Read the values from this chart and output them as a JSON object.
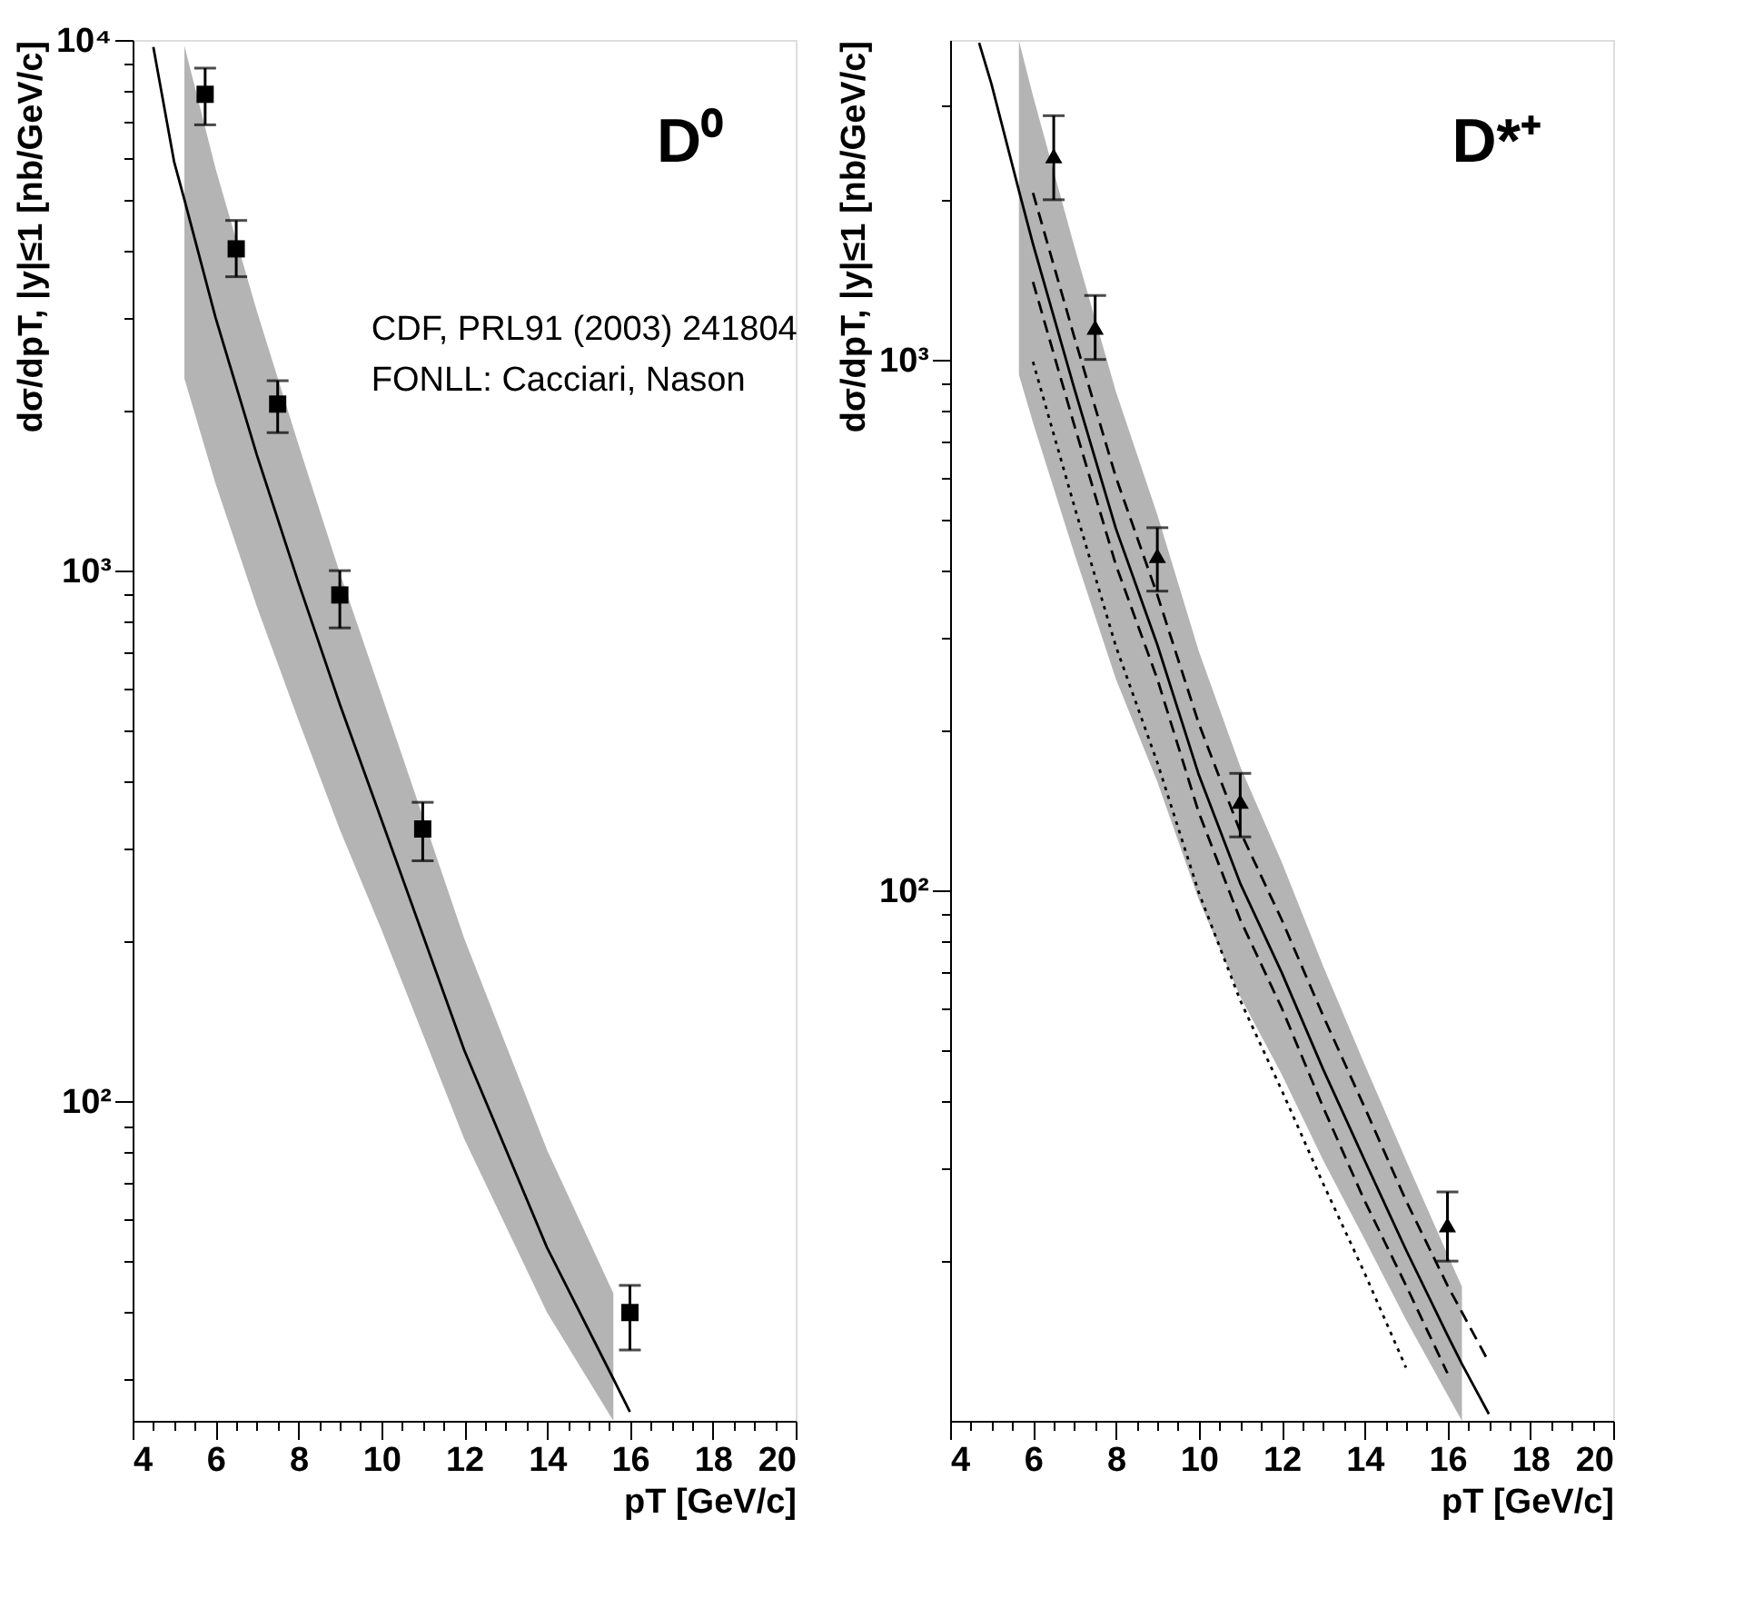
{
  "chart_data": [
    {
      "type": "line",
      "title": "D⁰",
      "xlabel": "pT  [GeV/c]",
      "ylabel": "dσ/dpT, |y|≤1  [nb/GeV/c]",
      "log": "y",
      "grid": false,
      "xlim": [
        4,
        20
      ],
      "xticks": [
        4,
        6,
        8,
        10,
        12,
        14,
        16,
        18,
        20,
        {
          "value": 4.5,
          "label": null
        },
        {
          "value": 5,
          "label": null
        },
        {
          "value": 5.5,
          "label": null
        },
        {
          "value": 6.5,
          "label": null
        },
        {
          "value": 7,
          "label": null
        },
        {
          "value": 7.5,
          "label": null
        },
        {
          "value": 8.5,
          "label": null
        },
        {
          "value": 9,
          "label": null
        },
        {
          "value": 9.5,
          "label": null
        },
        {
          "value": 10.5,
          "label": null
        },
        {
          "value": 11,
          "label": null
        },
        {
          "value": 11.5,
          "label": null
        },
        {
          "value": 12.5,
          "label": null
        },
        {
          "value": 13,
          "label": null
        },
        {
          "value": 13.5,
          "label": null
        },
        {
          "value": 14.5,
          "label": null
        },
        {
          "value": 15,
          "label": null
        },
        {
          "value": 15.5,
          "label": null
        },
        {
          "value": 16.5,
          "label": null
        },
        {
          "value": 17,
          "label": null
        },
        {
          "value": 17.5,
          "label": null
        },
        {
          "value": 18.5,
          "label": null
        },
        {
          "value": 19,
          "label": null
        },
        {
          "value": 19.5,
          "label": null
        }
      ],
      "ylim": [
        25,
        10000
      ],
      "yticks": [
        {
          "value": 100,
          "label": "10²"
        },
        {
          "value": 1000,
          "label": "10³"
        },
        {
          "value": 10000,
          "label": "10⁴"
        },
        {
          "value": 30,
          "label": null
        },
        {
          "value": 40,
          "label": null
        },
        {
          "value": 50,
          "label": null
        },
        {
          "value": 60,
          "label": null
        },
        {
          "value": 70,
          "label": null
        },
        {
          "value": 80,
          "label": null
        },
        {
          "value": 90,
          "label": null
        },
        {
          "value": 200,
          "label": null
        },
        {
          "value": 300,
          "label": null
        },
        {
          "value": 400,
          "label": null
        },
        {
          "value": 500,
          "label": null
        },
        {
          "value": 600,
          "label": null
        },
        {
          "value": 700,
          "label": null
        },
        {
          "value": 800,
          "label": null
        },
        {
          "value": 900,
          "label": null
        },
        {
          "value": 2000,
          "label": null
        },
        {
          "value": 3000,
          "label": null
        },
        {
          "value": 4000,
          "label": null
        },
        {
          "value": 5000,
          "label": null
        },
        {
          "value": 6000,
          "label": null
        },
        {
          "value": 7000,
          "label": null
        },
        {
          "value": 8000,
          "label": null
        },
        {
          "value": 9000,
          "label": null
        }
      ],
      "annotations": [
        "CDF, PRL91 (2003) 241804",
        "FONLL: Cacciari, Nason"
      ],
      "series": [
        {
          "color": "#000000",
          "line_style": "solid",
          "marker": "none",
          "x": [
            4.5,
            5,
            5.25,
            6,
            7,
            8,
            9,
            10,
            12,
            14,
            15.6,
            16
          ],
          "values": [
            9700,
            5900,
            5000,
            3000,
            1650,
            950,
            560,
            340,
            125,
            53,
            30,
            26
          ],
          "lower": [
            null,
            null,
            2300,
            1460,
            855,
            523,
            325,
            211,
            85,
            40,
            25,
            null
          ],
          "upper": [
            null,
            null,
            9750,
            5730,
            3080,
            1730,
            990,
            585,
            203,
            81,
            43.5,
            null
          ]
        },
        {
          "type": "scatter",
          "color": "#000000",
          "marker": "square",
          "x": [
            5.75,
            6.5,
            7.5,
            9,
            11,
            16
          ],
          "values": [
            7900,
            4040,
            2060,
            900,
            326,
            40
          ],
          "errors": [
            [
              6920,
              8850
            ],
            [
              3580,
              4570
            ],
            [
              1820,
              2280
            ],
            [
              780,
              1000
            ],
            [
              284,
              366
            ],
            [
              34,
              45
            ]
          ]
        }
      ]
    },
    {
      "type": "line",
      "title": "D*⁺",
      "xlabel": "pT  [GeV/c]",
      "ylabel": "dσ/dpT, |y|≤1  [nb/GeV/c]",
      "log": "y",
      "grid": false,
      "xlim": [
        4,
        20
      ],
      "xticks": [
        4,
        6,
        8,
        10,
        12,
        14,
        16,
        18,
        20,
        {
          "value": 4.5,
          "label": null
        },
        {
          "value": 5,
          "label": null
        },
        {
          "value": 5.5,
          "label": null
        },
        {
          "value": 6.5,
          "label": null
        },
        {
          "value": 7,
          "label": null
        },
        {
          "value": 7.5,
          "label": null
        },
        {
          "value": 8.5,
          "label": null
        },
        {
          "value": 9,
          "label": null
        },
        {
          "value": 9.5,
          "label": null
        },
        {
          "value": 10.5,
          "label": null
        },
        {
          "value": 11,
          "label": null
        },
        {
          "value": 11.5,
          "label": null
        },
        {
          "value": 12.5,
          "label": null
        },
        {
          "value": 13,
          "label": null
        },
        {
          "value": 13.5,
          "label": null
        },
        {
          "value": 14.5,
          "label": null
        },
        {
          "value": 15,
          "label": null
        },
        {
          "value": 15.5,
          "label": null
        },
        {
          "value": 16.5,
          "label": null
        },
        {
          "value": 17,
          "label": null
        },
        {
          "value": 17.5,
          "label": null
        },
        {
          "value": 18.5,
          "label": null
        },
        {
          "value": 19,
          "label": null
        },
        {
          "value": 19.5,
          "label": null
        }
      ],
      "ylim": [
        10,
        4000
      ],
      "yticks": [
        {
          "value": 100,
          "label": "10²"
        },
        {
          "value": 1000,
          "label": "10³"
        },
        {
          "value": 20,
          "label": null
        },
        {
          "value": 30,
          "label": null
        },
        {
          "value": 40,
          "label": null
        },
        {
          "value": 50,
          "label": null
        },
        {
          "value": 60,
          "label": null
        },
        {
          "value": 70,
          "label": null
        },
        {
          "value": 80,
          "label": null
        },
        {
          "value": 90,
          "label": null
        },
        {
          "value": 200,
          "label": null
        },
        {
          "value": 300,
          "label": null
        },
        {
          "value": 400,
          "label": null
        },
        {
          "value": 500,
          "label": null
        },
        {
          "value": 600,
          "label": null
        },
        {
          "value": 700,
          "label": null
        },
        {
          "value": 800,
          "label": null
        },
        {
          "value": 900,
          "label": null
        },
        {
          "value": 2000,
          "label": null
        },
        {
          "value": 3000,
          "label": null
        }
      ],
      "series": [
        {
          "type": "line",
          "color": "#000000",
          "line_style": "dotted",
          "marker": "none",
          "x": [
            6,
            7,
            8,
            9,
            10,
            11,
            12,
            13,
            14,
            15
          ],
          "values": [
            990,
            528,
            288,
            174,
            99,
            62,
            42,
            28,
            19,
            12.6
          ]
        },
        {
          "type": "line",
          "color": "#000000",
          "line_style": "dashed",
          "marker": "none",
          "x": [
            6,
            7,
            8,
            9,
            10,
            11,
            12,
            13,
            14,
            15,
            16
          ],
          "values": [
            1400,
            750,
            410,
            250,
            140,
            88,
            60,
            39,
            26,
            18,
            12.3
          ]
        },
        {
          "type": "line",
          "color": "#000000",
          "line_style": "dashed",
          "marker": "none",
          "x": [
            6,
            7,
            8,
            9,
            10,
            11,
            12,
            13,
            14,
            15,
            16,
            17
          ],
          "values": [
            2060,
            1100,
            600,
            360,
            206,
            129,
            88,
            58,
            39,
            26,
            18,
            12.9
          ]
        },
        {
          "color": "#000000",
          "line_style": "solid",
          "marker": "none",
          "x": [
            4.7,
            5,
            5.66,
            6,
            7,
            8,
            9,
            10,
            11,
            12,
            13,
            14,
            15,
            16,
            16.35,
            17
          ],
          "values": [
            3950,
            3300,
            2080,
            1650,
            880,
            480,
            290,
            165,
            103,
            70,
            46,
            31,
            21,
            14.5,
            12.8,
            10.3
          ],
          "lower": [
            null,
            null,
            936,
            760,
            430,
            250,
            160,
            96,
            63,
            45,
            31,
            22,
            15.5,
            11.2,
            10,
            null
          ],
          "upper": [
            null,
            null,
            3990,
            3140,
            1630,
            870,
            510,
            282,
            171,
            113,
            72,
            47,
            31,
            20.6,
            17.9,
            null
          ]
        },
        {
          "type": "scatter",
          "color": "#000000",
          "marker": "triangle",
          "x": [
            6.5,
            7.5,
            9,
            11,
            16
          ],
          "values": [
            2420,
            1150,
            427,
            147,
            23.4
          ],
          "errors": [
            [
              2000,
              2880
            ],
            [
              1000,
              1320
            ],
            [
              366,
              482
            ],
            [
              126,
              166
            ],
            [
              20,
              27
            ]
          ]
        }
      ]
    }
  ]
}
